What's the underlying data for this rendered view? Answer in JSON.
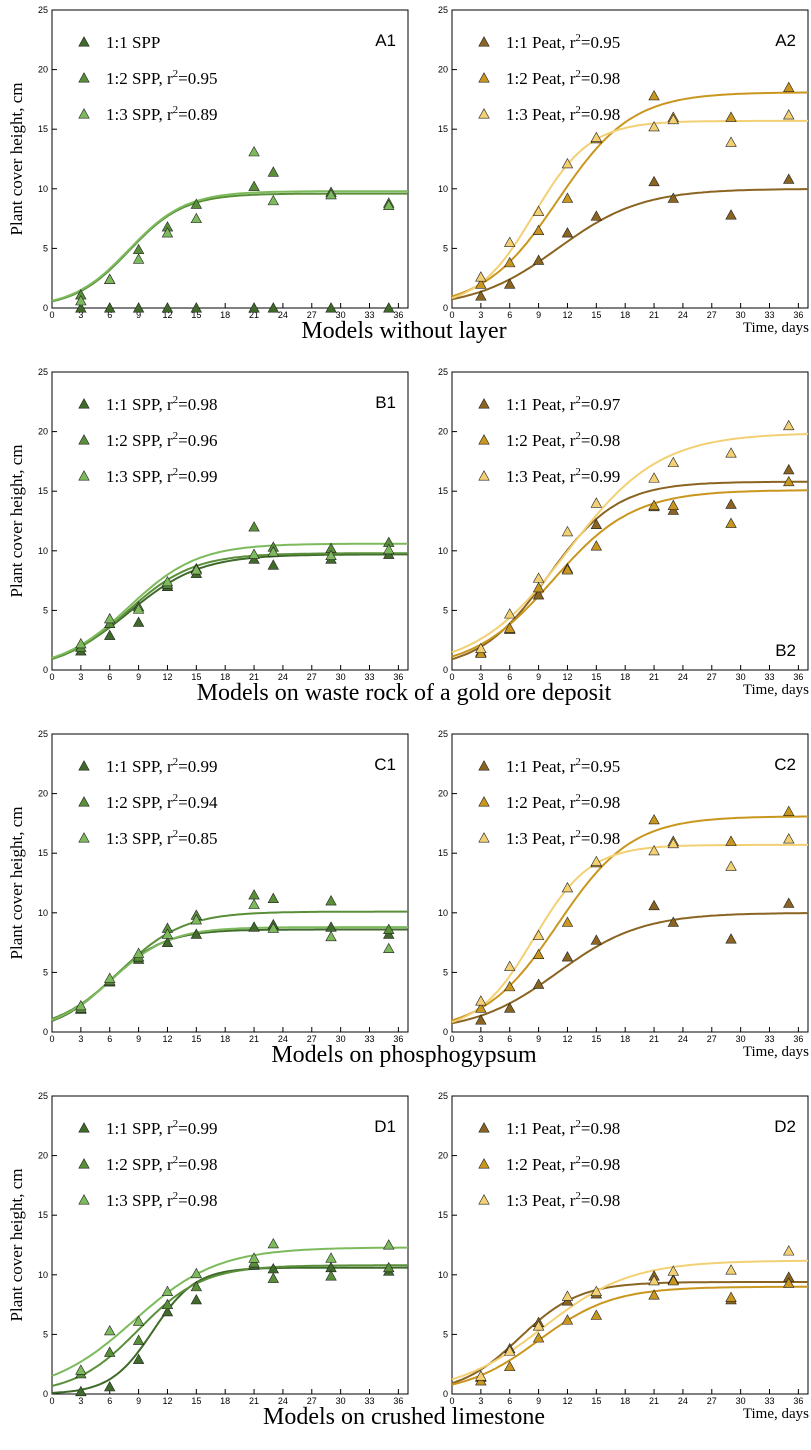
{
  "rows": [
    {
      "title": "Models without layer",
      "time_label": "Time, days"
    },
    {
      "title": "Models on waste rock of a gold ore deposit",
      "time_label": "Time, days"
    },
    {
      "title": "Models on phosphogypsum",
      "time_label": "Time, days"
    },
    {
      "title": "Models on crushed limestone",
      "time_label": "Time, days"
    }
  ],
  "colors": {
    "spp_1_1": "#3f6a2a",
    "spp_1_2": "#5a8f3a",
    "spp_1_3": "#7dba5c",
    "peat_1_1": "#8a6420",
    "peat_1_2": "#c9961e",
    "peat_1_3": "#f2d073"
  },
  "chart_data": [
    {
      "type": "scatter",
      "panel": "A1",
      "ylabel": "Plant cover height, cm",
      "xlim": [
        0,
        37
      ],
      "ylim": [
        0,
        25
      ],
      "x_ticks": [
        0,
        3,
        6,
        9,
        12,
        15,
        18,
        21,
        24,
        27,
        30,
        33,
        36
      ],
      "y_ticks": [
        0,
        5,
        10,
        15,
        20,
        25
      ],
      "series": [
        {
          "name": "1:1 SPP",
          "r2": "",
          "color": "spp_1_1",
          "x": [
            3,
            6,
            9,
            12,
            15,
            21,
            23,
            29,
            35
          ],
          "y": [
            0,
            0,
            0,
            0,
            0,
            0,
            0,
            0,
            0
          ],
          "fit": null
        },
        {
          "name": "1:2 SPP",
          "r2": "0.95",
          "color": "spp_1_2",
          "x": [
            3,
            6,
            9,
            12,
            15,
            21,
            23,
            29,
            35
          ],
          "y": [
            1.1,
            2.4,
            4.9,
            6.8,
            8.7,
            10.2,
            11.4,
            9.7,
            8.8
          ],
          "fit": [
            9.6,
            0.35,
            8
          ]
        },
        {
          "name": "1:3 SPP",
          "r2": "0.89",
          "color": "spp_1_3",
          "x": [
            3,
            6,
            9,
            12,
            15,
            21,
            23,
            29,
            35
          ],
          "y": [
            0.6,
            2.4,
            4.1,
            6.3,
            7.5,
            13.1,
            9.0,
            9.5,
            8.6
          ],
          "fit": [
            9.8,
            0.34,
            8
          ]
        }
      ]
    },
    {
      "type": "scatter",
      "panel": "A2",
      "ylabel": "",
      "xlim": [
        0,
        37
      ],
      "ylim": [
        0,
        25
      ],
      "x_ticks": [
        0,
        3,
        6,
        9,
        12,
        15,
        18,
        21,
        24,
        27,
        30,
        33,
        36
      ],
      "y_ticks": [
        0,
        5,
        10,
        15,
        20,
        25
      ],
      "series": [
        {
          "name": "1:1 Peat",
          "r2": "0.95",
          "color": "peat_1_1",
          "x": [
            3,
            6,
            9,
            12,
            15,
            21,
            23,
            29,
            35
          ],
          "y": [
            1.0,
            2.0,
            4.0,
            6.3,
            7.7,
            10.6,
            9.2,
            7.8,
            10.8
          ],
          "fit": [
            10.0,
            0.23,
            11
          ]
        },
        {
          "name": "1:2 Peat",
          "r2": "0.98",
          "color": "peat_1_2",
          "x": [
            3,
            6,
            9,
            12,
            15,
            21,
            23,
            29,
            35
          ],
          "y": [
            2.0,
            3.8,
            6.5,
            9.2,
            14.2,
            17.8,
            16.0,
            16.0,
            18.5
          ],
          "fit": [
            18.1,
            0.26,
            11
          ]
        },
        {
          "name": "1:3 Peat",
          "r2": "0.98",
          "color": "peat_1_3",
          "x": [
            3,
            6,
            9,
            12,
            15,
            21,
            23,
            29,
            35
          ],
          "y": [
            2.6,
            5.5,
            8.1,
            12.1,
            14.3,
            15.2,
            15.8,
            13.9,
            16.2
          ],
          "fit": [
            15.7,
            0.34,
            8.5
          ]
        }
      ]
    },
    {
      "type": "scatter",
      "panel": "B1",
      "ylabel": "Plant cover height, cm",
      "xlim": [
        0,
        37
      ],
      "ylim": [
        0,
        25
      ],
      "x_ticks": [
        0,
        3,
        6,
        9,
        12,
        15,
        18,
        21,
        24,
        27,
        30,
        33,
        36
      ],
      "y_ticks": [
        0,
        5,
        10,
        15,
        20,
        25
      ],
      "series": [
        {
          "name": "1:1 SPP",
          "r2": "0.98",
          "color": "spp_1_1",
          "x": [
            3,
            6,
            9,
            12,
            15,
            21,
            23,
            29,
            35
          ],
          "y": [
            1.6,
            2.9,
            4.0,
            7.0,
            8.1,
            9.3,
            8.8,
            9.3,
            9.7
          ],
          "fit": [
            9.7,
            0.27,
            8
          ]
        },
        {
          "name": "1:2 SPP",
          "r2": "0.96",
          "color": "spp_1_2",
          "x": [
            3,
            6,
            9,
            12,
            15,
            21,
            23,
            29,
            35
          ],
          "y": [
            1.9,
            3.9,
            5.3,
            7.2,
            8.5,
            12.0,
            10.3,
            10.2,
            10.7
          ],
          "fit": [
            9.8,
            0.29,
            7.8
          ]
        },
        {
          "name": "1:3 SPP",
          "r2": "0.99",
          "color": "spp_1_3",
          "x": [
            3,
            6,
            9,
            12,
            15,
            21,
            23,
            29,
            35
          ],
          "y": [
            2.2,
            4.3,
            5.1,
            7.4,
            8.4,
            9.7,
            9.9,
            9.6,
            10.1
          ],
          "fit": [
            10.6,
            0.28,
            8
          ]
        }
      ]
    },
    {
      "type": "scatter",
      "panel": "B2",
      "ylabel": "",
      "xlim": [
        0,
        37
      ],
      "ylim": [
        0,
        25
      ],
      "x_ticks": [
        0,
        3,
        6,
        9,
        12,
        15,
        18,
        21,
        24,
        27,
        30,
        33,
        36
      ],
      "y_ticks": [
        0,
        5,
        10,
        15,
        20,
        25
      ],
      "series": [
        {
          "name": "1:1 Peat",
          "r2": "0.97",
          "color": "peat_1_1",
          "x": [
            3,
            6,
            9,
            12,
            15,
            21,
            23,
            29,
            35
          ],
          "y": [
            1.5,
            3.4,
            6.3,
            8.5,
            12.2,
            13.7,
            13.4,
            13.9,
            16.8
          ],
          "fit": [
            15.8,
            0.28,
            10
          ]
        },
        {
          "name": "1:2 Peat",
          "r2": "0.98",
          "color": "peat_1_2",
          "x": [
            3,
            6,
            9,
            12,
            15,
            21,
            23,
            29,
            35
          ],
          "y": [
            1.4,
            3.5,
            6.9,
            8.4,
            10.4,
            13.8,
            13.8,
            12.3,
            15.8
          ],
          "fit": [
            15.1,
            0.24,
            10.5
          ]
        },
        {
          "name": "1:3 Peat",
          "r2": "0.99",
          "color": "peat_1_3",
          "x": [
            3,
            6,
            9,
            12,
            15,
            21,
            23,
            29,
            35
          ],
          "y": [
            1.8,
            4.7,
            7.7,
            11.6,
            14.0,
            16.1,
            17.4,
            18.2,
            20.5
          ],
          "fit": [
            19.9,
            0.21,
            12
          ]
        }
      ]
    },
    {
      "type": "scatter",
      "panel": "C1",
      "ylabel": "Plant cover height, cm",
      "xlim": [
        0,
        37
      ],
      "ylim": [
        0,
        25
      ],
      "x_ticks": [
        0,
        3,
        6,
        9,
        12,
        15,
        18,
        21,
        24,
        27,
        30,
        33,
        36
      ],
      "y_ticks": [
        0,
        5,
        10,
        15,
        20,
        25
      ],
      "series": [
        {
          "name": "1:1 SPP",
          "r2": "0.99",
          "color": "spp_1_1",
          "x": [
            3,
            6,
            9,
            12,
            15,
            21,
            23,
            29,
            35
          ],
          "y": [
            1.9,
            4.2,
            6.1,
            7.5,
            8.2,
            8.8,
            9.0,
            8.8,
            8.2
          ],
          "fit": [
            8.6,
            0.35,
            6
          ]
        },
        {
          "name": "1:2 SPP",
          "r2": "0.94",
          "color": "spp_1_2",
          "x": [
            3,
            6,
            9,
            12,
            15,
            21,
            23,
            29,
            35
          ],
          "y": [
            2.0,
            4.3,
            6.3,
            8.7,
            9.8,
            11.5,
            11.2,
            11.0,
            8.6
          ],
          "fit": [
            10.1,
            0.3,
            7
          ]
        },
        {
          "name": "1:3 SPP",
          "r2": "0.85",
          "color": "spp_1_3",
          "x": [
            3,
            6,
            9,
            12,
            15,
            21,
            23,
            29,
            35
          ],
          "y": [
            2.2,
            4.5,
            6.6,
            8.2,
            9.4,
            10.7,
            8.7,
            8.0,
            7.0
          ],
          "fit": [
            8.8,
            0.33,
            6.2
          ]
        }
      ]
    },
    {
      "type": "scatter",
      "panel": "C2",
      "ylabel": "",
      "xlim": [
        0,
        37
      ],
      "ylim": [
        0,
        25
      ],
      "x_ticks": [
        0,
        3,
        6,
        9,
        12,
        15,
        18,
        21,
        24,
        27,
        30,
        33,
        36
      ],
      "y_ticks": [
        0,
        5,
        10,
        15,
        20,
        25
      ],
      "series": [
        {
          "name": "1:1 Peat",
          "r2": "0.95",
          "color": "peat_1_1",
          "x": [
            3,
            6,
            9,
            12,
            15,
            21,
            23,
            29,
            35
          ],
          "y": [
            1.0,
            2.0,
            4.0,
            6.3,
            7.7,
            10.6,
            9.2,
            7.8,
            10.8
          ],
          "fit": [
            10.0,
            0.23,
            11
          ]
        },
        {
          "name": "1:2 Peat",
          "r2": "0.98",
          "color": "peat_1_2",
          "x": [
            3,
            6,
            9,
            12,
            15,
            21,
            23,
            29,
            35
          ],
          "y": [
            2.0,
            3.8,
            6.5,
            9.2,
            14.2,
            17.8,
            16.0,
            16.0,
            18.5
          ],
          "fit": [
            18.1,
            0.26,
            11
          ]
        },
        {
          "name": "1:3 Peat",
          "r2": "0.98",
          "color": "peat_1_3",
          "x": [
            3,
            6,
            9,
            12,
            15,
            21,
            23,
            29,
            35
          ],
          "y": [
            2.6,
            5.5,
            8.1,
            12.1,
            14.3,
            15.2,
            15.8,
            13.9,
            16.2
          ],
          "fit": [
            15.7,
            0.34,
            8.5
          ]
        }
      ]
    },
    {
      "type": "scatter",
      "panel": "D1",
      "ylabel": "Plant cover height, cm",
      "xlim": [
        0,
        37
      ],
      "ylim": [
        0,
        25
      ],
      "x_ticks": [
        0,
        3,
        6,
        9,
        12,
        15,
        18,
        21,
        24,
        27,
        30,
        33,
        36
      ],
      "y_ticks": [
        0,
        5,
        10,
        15,
        20,
        25
      ],
      "series": [
        {
          "name": "1:1 SPP",
          "r2": "0.99",
          "color": "spp_1_1",
          "x": [
            3,
            6,
            9,
            12,
            15,
            21,
            23,
            29,
            35
          ],
          "y": [
            0.2,
            0.6,
            2.9,
            6.9,
            7.9,
            10.8,
            10.5,
            10.6,
            10.3
          ],
          "fit": [
            10.6,
            0.45,
            10.5
          ]
        },
        {
          "name": "1:2 SPP",
          "r2": "0.98",
          "color": "spp_1_2",
          "x": [
            3,
            6,
            9,
            12,
            15,
            21,
            23,
            29,
            35
          ],
          "y": [
            1.7,
            3.5,
            4.5,
            7.5,
            9.0,
            11.0,
            9.7,
            9.9,
            10.6
          ],
          "fit": [
            10.8,
            0.3,
            9
          ]
        },
        {
          "name": "1:3 SPP",
          "r2": "0.98",
          "color": "spp_1_3",
          "x": [
            3,
            6,
            9,
            12,
            15,
            21,
            23,
            29,
            35
          ],
          "y": [
            2.0,
            5.3,
            6.1,
            8.6,
            10.1,
            11.4,
            12.6,
            11.4,
            12.5
          ],
          "fit": [
            12.3,
            0.23,
            8.5
          ]
        }
      ]
    },
    {
      "type": "scatter",
      "panel": "D2",
      "ylabel": "",
      "xlim": [
        0,
        37
      ],
      "ylim": [
        0,
        25
      ],
      "x_ticks": [
        0,
        3,
        6,
        9,
        12,
        15,
        18,
        21,
        24,
        27,
        30,
        33,
        36
      ],
      "y_ticks": [
        0,
        5,
        10,
        15,
        20,
        25
      ],
      "series": [
        {
          "name": "1:1 Peat",
          "r2": "0.98",
          "color": "peat_1_1",
          "x": [
            3,
            6,
            9,
            12,
            15,
            21,
            23,
            29,
            35
          ],
          "y": [
            1.4,
            3.8,
            6.0,
            7.8,
            8.4,
            9.9,
            9.6,
            7.9,
            9.8
          ],
          "fit": [
            9.4,
            0.32,
            7
          ]
        },
        {
          "name": "1:2 Peat",
          "r2": "0.98",
          "color": "peat_1_2",
          "x": [
            3,
            6,
            9,
            12,
            15,
            21,
            23,
            29,
            35
          ],
          "y": [
            1.1,
            2.3,
            4.7,
            6.2,
            6.6,
            8.3,
            9.5,
            8.1,
            9.3
          ],
          "fit": [
            9.0,
            0.26,
            9
          ]
        },
        {
          "name": "1:3 Peat",
          "r2": "0.98",
          "color": "peat_1_3",
          "x": [
            3,
            6,
            9,
            12,
            15,
            21,
            23,
            29,
            35
          ],
          "y": [
            1.5,
            3.6,
            5.7,
            8.2,
            8.6,
            9.5,
            10.3,
            10.4,
            12.0
          ],
          "fit": [
            11.2,
            0.22,
            9.5
          ]
        }
      ]
    }
  ]
}
